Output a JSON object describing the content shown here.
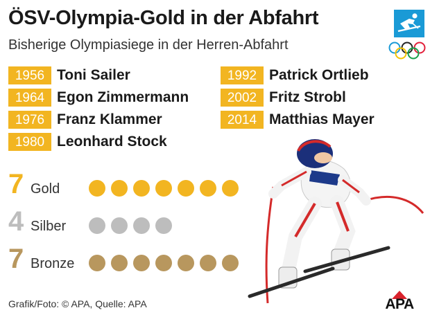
{
  "header": {
    "title": "ÖSV-Olympia-Gold in der Abfahrt",
    "subtitle": "Bisherige Olympiasiege in der Herren-Abfahrt"
  },
  "winners": [
    {
      "year": "1956",
      "name": "Toni Sailer"
    },
    {
      "year": "1964",
      "name": "Egon Zimmermann"
    },
    {
      "year": "1976",
      "name": "Franz Klammer"
    },
    {
      "year": "1980",
      "name": "Leonhard Stock"
    },
    {
      "year": "1992",
      "name": "Patrick Ortlieb"
    },
    {
      "year": "2002",
      "name": "Fritz Strobl"
    },
    {
      "year": "2014",
      "name": "Matthias Mayer"
    }
  ],
  "medals": [
    {
      "count": "7",
      "label": "Gold",
      "color": "#f2b521",
      "dots": 7
    },
    {
      "count": "4",
      "label": "Silber",
      "color": "#bdbdbd",
      "dots": 4
    },
    {
      "count": "7",
      "label": "Bronze",
      "color": "#b8975e",
      "dots": 7
    }
  ],
  "colors": {
    "accent": "#f2b521",
    "pictogram": "#1a9ad6",
    "apa_red": "#d9232d"
  },
  "icons": {
    "pictogram": "downhill-skiing-pictogram-icon",
    "rings": "olympic-rings-icon",
    "apa_logo": "apa-logo-icon"
  },
  "footer": {
    "credit": "Grafik/Foto: © APA, Quelle: APA",
    "logo_text": "APA"
  }
}
